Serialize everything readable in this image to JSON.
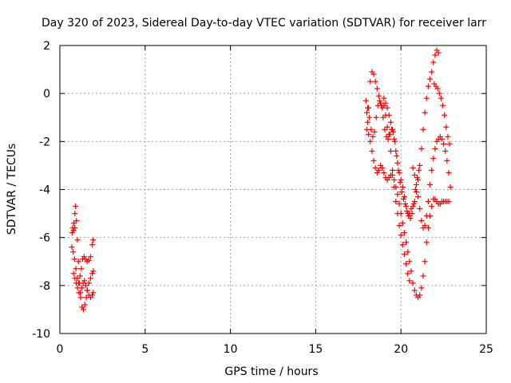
{
  "chart_data": {
    "type": "scatter",
    "title": "Day 320 of 2023, Sidereal Day-to-day VTEC variation (SDTVAR) for receiver larr",
    "xlabel": "GPS time / hours",
    "ylabel": "SDTVAR / TECUs",
    "xlim": [
      0,
      25
    ],
    "ylim": [
      -10,
      2
    ],
    "xticks": [
      "0",
      "5",
      "10",
      "15",
      "20",
      "25"
    ],
    "yticks": [
      "-10",
      "-8",
      "-6",
      "-4",
      "-2",
      "0",
      "2"
    ],
    "grid": true,
    "marker": "+",
    "color": "#ff0000",
    "series": [
      {
        "points": [
          [
            0.7,
            -6.4
          ],
          [
            0.78,
            -6.6
          ],
          [
            0.86,
            -6.9
          ],
          [
            0.94,
            -7.3
          ],
          [
            1.02,
            -7.7
          ],
          [
            1.1,
            -7.9
          ],
          [
            1.18,
            -7.6
          ],
          [
            1.26,
            -7.3
          ],
          [
            1.34,
            -6.9
          ],
          [
            1.42,
            -6.8
          ],
          [
            1.5,
            -6.9
          ],
          [
            1.6,
            -7.0
          ],
          [
            1.7,
            -6.95
          ],
          [
            1.8,
            -6.8
          ],
          [
            1.9,
            -6.3
          ],
          [
            1.95,
            -6.1
          ],
          [
            0.75,
            -5.6
          ],
          [
            0.82,
            -5.4
          ],
          [
            0.88,
            -5.0
          ],
          [
            0.92,
            -4.7
          ],
          [
            0.97,
            -5.3
          ],
          [
            1.03,
            -6.1
          ],
          [
            1.09,
            -7.0
          ],
          [
            1.15,
            -7.9
          ],
          [
            1.22,
            -8.5
          ],
          [
            1.3,
            -8.9
          ],
          [
            1.38,
            -9.0
          ],
          [
            1.46,
            -8.8
          ],
          [
            1.55,
            -8.5
          ],
          [
            1.62,
            -8.2
          ],
          [
            1.7,
            -7.9
          ],
          [
            1.8,
            -7.7
          ],
          [
            1.9,
            -7.5
          ],
          [
            1.96,
            -7.4
          ],
          [
            0.8,
            -7.5
          ],
          [
            0.88,
            -7.7
          ],
          [
            0.96,
            -7.9
          ],
          [
            1.04,
            -8.1
          ],
          [
            1.12,
            -8.3
          ],
          [
            1.2,
            -8.3
          ],
          [
            1.28,
            -8.1
          ],
          [
            1.36,
            -7.9
          ],
          [
            1.44,
            -7.8
          ],
          [
            1.52,
            -8.0
          ],
          [
            1.6,
            -8.2
          ],
          [
            1.7,
            -8.4
          ],
          [
            1.8,
            -8.5
          ],
          [
            1.9,
            -8.4
          ],
          [
            1.95,
            -8.3
          ],
          [
            0.72,
            -5.8
          ],
          [
            0.8,
            -5.7
          ],
          [
            0.88,
            -5.6
          ]
        ]
      },
      {
        "points": [
          [
            17.95,
            -0.3
          ],
          [
            18.0,
            -0.8
          ],
          [
            18.05,
            -1.2
          ],
          [
            18.1,
            -0.6
          ],
          [
            18.2,
            0.5
          ],
          [
            18.3,
            0.9
          ],
          [
            18.4,
            0.8
          ],
          [
            18.5,
            0.5
          ],
          [
            18.6,
            0.2
          ],
          [
            18.7,
            -0.1
          ],
          [
            18.8,
            -0.4
          ],
          [
            18.9,
            -0.6
          ],
          [
            19.0,
            -0.5
          ],
          [
            19.1,
            -0.4
          ],
          [
            19.2,
            -0.6
          ],
          [
            19.3,
            -0.9
          ],
          [
            19.4,
            -1.2
          ],
          [
            19.5,
            -1.5
          ],
          [
            19.6,
            -1.9
          ],
          [
            19.7,
            -2.4
          ],
          [
            19.8,
            -2.9
          ],
          [
            19.9,
            -3.3
          ],
          [
            20.0,
            -3.6
          ],
          [
            20.1,
            -3.9
          ],
          [
            20.2,
            -4.3
          ],
          [
            20.3,
            -4.7
          ],
          [
            20.4,
            -5.0
          ],
          [
            20.5,
            -5.0
          ],
          [
            20.6,
            -4.8
          ],
          [
            20.7,
            -4.7
          ],
          [
            20.8,
            -4.5
          ],
          [
            20.9,
            -4.1
          ],
          [
            21.0,
            -3.6
          ],
          [
            21.1,
            -3.0
          ],
          [
            21.2,
            -2.3
          ],
          [
            21.3,
            -1.5
          ],
          [
            21.4,
            -0.8
          ],
          [
            21.5,
            -0.2
          ],
          [
            21.6,
            0.3
          ],
          [
            21.7,
            0.6
          ],
          [
            21.8,
            0.9
          ],
          [
            21.9,
            1.3
          ],
          [
            22.0,
            1.6
          ],
          [
            22.1,
            1.8
          ],
          [
            22.2,
            1.7
          ],
          [
            18.05,
            -0.6
          ],
          [
            18.15,
            -1.0
          ],
          [
            18.25,
            -1.5
          ],
          [
            18.35,
            -1.8
          ],
          [
            18.45,
            -1.6
          ],
          [
            18.55,
            -1.0
          ],
          [
            18.65,
            -0.5
          ],
          [
            18.75,
            -0.3
          ],
          [
            18.85,
            -0.5
          ],
          [
            18.95,
            -1.0
          ],
          [
            19.05,
            -1.5
          ],
          [
            19.15,
            -1.8
          ],
          [
            19.25,
            -1.9
          ],
          [
            19.35,
            -1.7
          ],
          [
            19.45,
            -1.5
          ],
          [
            19.55,
            -1.6
          ],
          [
            19.65,
            -2.0
          ],
          [
            19.75,
            -2.6
          ],
          [
            19.85,
            -3.2
          ],
          [
            19.95,
            -3.7
          ],
          [
            20.05,
            -4.1
          ],
          [
            20.15,
            -4.4
          ],
          [
            20.25,
            -4.6
          ],
          [
            20.35,
            -4.9
          ],
          [
            20.45,
            -5.1
          ],
          [
            20.55,
            -5.2
          ],
          [
            20.65,
            -5.0
          ],
          [
            20.75,
            -4.6
          ],
          [
            20.85,
            -4.0
          ],
          [
            20.95,
            -3.5
          ],
          [
            21.05,
            -3.2
          ],
          [
            18.0,
            -1.5
          ],
          [
            18.1,
            -1.7
          ],
          [
            18.2,
            -2.0
          ],
          [
            18.3,
            -2.4
          ],
          [
            18.4,
            -2.8
          ],
          [
            18.5,
            -3.1
          ],
          [
            18.6,
            -3.3
          ],
          [
            18.7,
            -3.2
          ],
          [
            18.8,
            -3.0
          ],
          [
            18.9,
            -3.1
          ],
          [
            19.0,
            -3.3
          ],
          [
            19.1,
            -3.5
          ],
          [
            19.2,
            -3.6
          ],
          [
            19.3,
            -3.5
          ],
          [
            19.4,
            -3.4
          ],
          [
            19.5,
            -3.4
          ],
          [
            19.6,
            -3.6
          ],
          [
            19.7,
            -3.9
          ],
          [
            19.8,
            -4.2
          ],
          [
            19.9,
            -4.6
          ],
          [
            20.0,
            -5.0
          ],
          [
            20.1,
            -5.4
          ],
          [
            20.2,
            -5.8
          ],
          [
            20.3,
            -6.2
          ],
          [
            20.4,
            -6.6
          ],
          [
            20.5,
            -7.0
          ],
          [
            20.6,
            -7.4
          ],
          [
            20.7,
            -7.9
          ],
          [
            20.8,
            -8.2
          ],
          [
            20.9,
            -8.4
          ],
          [
            21.0,
            -8.5
          ],
          [
            21.1,
            -8.4
          ],
          [
            21.2,
            -8.1
          ],
          [
            21.3,
            -7.6
          ],
          [
            21.4,
            -7.0
          ],
          [
            21.5,
            -6.2
          ],
          [
            21.6,
            -5.6
          ],
          [
            21.7,
            -5.1
          ],
          [
            21.8,
            -4.7
          ],
          [
            21.9,
            -4.4
          ],
          [
            22.0,
            -4.4
          ],
          [
            22.1,
            -4.5
          ],
          [
            22.2,
            -4.6
          ],
          [
            22.3,
            -4.6
          ],
          [
            22.4,
            -4.5
          ],
          [
            22.5,
            -4.5
          ],
          [
            22.6,
            -4.5
          ],
          [
            22.7,
            -4.5
          ],
          [
            22.8,
            -4.5
          ],
          [
            20.7,
            -3.1
          ],
          [
            20.8,
            -3.4
          ],
          [
            20.9,
            -3.8
          ],
          [
            21.0,
            -4.3
          ],
          [
            21.1,
            -4.8
          ],
          [
            21.2,
            -5.3
          ],
          [
            21.3,
            -5.6
          ],
          [
            21.4,
            -5.5
          ],
          [
            21.5,
            -5.1
          ],
          [
            21.6,
            -4.5
          ],
          [
            21.7,
            -3.8
          ],
          [
            21.8,
            -3.2
          ],
          [
            21.9,
            -2.7
          ],
          [
            22.0,
            -2.3
          ],
          [
            22.1,
            -2.0
          ],
          [
            22.2,
            -1.9
          ],
          [
            22.3,
            -1.8
          ],
          [
            22.4,
            -1.9
          ],
          [
            22.5,
            -2.1
          ],
          [
            22.6,
            -2.4
          ],
          [
            22.7,
            -2.8
          ],
          [
            22.8,
            -3.3
          ],
          [
            22.9,
            -3.9
          ],
          [
            21.95,
            0.4
          ],
          [
            22.05,
            0.3
          ],
          [
            22.15,
            0.2
          ],
          [
            22.25,
            0.0
          ],
          [
            22.35,
            -0.2
          ],
          [
            22.45,
            -0.5
          ],
          [
            22.55,
            -0.9
          ],
          [
            22.65,
            -1.4
          ],
          [
            22.75,
            -1.8
          ],
          [
            22.85,
            -2.1
          ],
          [
            19.0,
            -0.2
          ],
          [
            19.1,
            -0.9
          ],
          [
            19.2,
            -1.4
          ],
          [
            19.3,
            -1.7
          ],
          [
            19.4,
            -2.4
          ],
          [
            19.5,
            -3.2
          ],
          [
            19.6,
            -3.9
          ],
          [
            19.7,
            -4.5
          ],
          [
            19.8,
            -5.0
          ],
          [
            19.9,
            -5.5
          ],
          [
            20.0,
            -5.9
          ],
          [
            20.1,
            -6.3
          ],
          [
            20.2,
            -6.7
          ],
          [
            20.3,
            -7.1
          ],
          [
            20.4,
            -7.5
          ],
          [
            20.5,
            -7.8
          ]
        ]
      }
    ]
  }
}
